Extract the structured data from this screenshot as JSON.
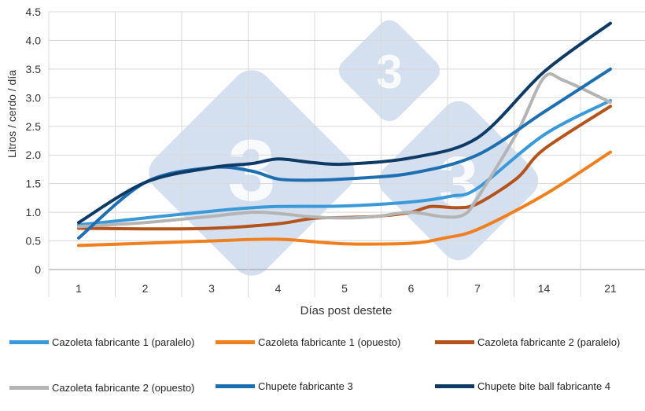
{
  "chart_data": {
    "type": "line",
    "title": "",
    "xlabel": "Días post destete",
    "ylabel": "Litros / cerdo / día",
    "categories": [
      "1",
      "2",
      "3",
      "4",
      "5",
      "6",
      "7",
      "14",
      "21"
    ],
    "ylim": [
      0,
      4.5
    ],
    "yticks": [
      "0",
      "0.5",
      "1.0",
      "1.5",
      "2.0",
      "2.5",
      "3.0",
      "3.5",
      "4.0",
      "4.5"
    ],
    "grid": true,
    "legend_position": "bottom",
    "watermark_text": "333",
    "series": [
      {
        "name": "Cazoleta fabricante 1 (paralelo)",
        "color": "#3a9ad9",
        "x": [
          1,
          2,
          3,
          3.5,
          4,
          5,
          6,
          6.6,
          7,
          8,
          9
        ],
        "values": [
          0.78,
          0.9,
          1.02,
          1.07,
          1.1,
          1.11,
          1.18,
          1.28,
          1.42,
          2.35,
          2.95
        ]
      },
      {
        "name": "Cazoleta fabricante 1 (opuesto)",
        "color": "#f07f1e",
        "x": [
          1,
          2,
          3,
          4,
          5,
          6,
          6.5,
          7,
          8,
          9
        ],
        "values": [
          0.42,
          0.46,
          0.5,
          0.53,
          0.45,
          0.46,
          0.55,
          0.7,
          1.3,
          2.05
        ]
      },
      {
        "name": "Cazoleta fabricante 2 (paralelo)",
        "color": "#b5531c",
        "x": [
          1,
          2,
          3,
          4,
          4.5,
          5,
          5.5,
          6,
          6.3,
          6.7,
          7,
          7.6,
          8,
          9
        ],
        "values": [
          0.72,
          0.71,
          0.72,
          0.8,
          0.89,
          0.91,
          0.93,
          1.0,
          1.1,
          1.08,
          1.15,
          1.6,
          2.1,
          2.85
        ]
      },
      {
        "name": "Cazoleta fabricante 2 (opuesto)",
        "color": "#b4b4b4",
        "x": [
          1,
          2,
          3,
          3.6,
          4,
          4.5,
          5,
          5.5,
          6,
          6.5,
          6.8,
          7,
          7.6,
          8,
          8.3,
          9
        ],
        "values": [
          0.75,
          0.82,
          0.93,
          1.0,
          0.98,
          0.92,
          0.9,
          0.93,
          1.0,
          0.92,
          0.96,
          1.25,
          2.4,
          3.35,
          3.3,
          2.92
        ]
      },
      {
        "name": "Chupete fabricante 3",
        "color": "#1e6fb2",
        "x": [
          1,
          2,
          3,
          3.6,
          4,
          4.5,
          5,
          6,
          7,
          8,
          9
        ],
        "values": [
          0.55,
          1.52,
          1.78,
          1.72,
          1.58,
          1.56,
          1.58,
          1.68,
          2.0,
          2.75,
          3.5
        ]
      },
      {
        "name": "Chupete bite ball fabricante 4",
        "color": "#0e3a66",
        "x": [
          1,
          2,
          3,
          3.6,
          4,
          4.5,
          5,
          6,
          7,
          8,
          9
        ],
        "values": [
          0.82,
          1.52,
          1.78,
          1.85,
          1.93,
          1.87,
          1.84,
          1.95,
          2.3,
          3.45,
          4.3
        ]
      }
    ]
  }
}
